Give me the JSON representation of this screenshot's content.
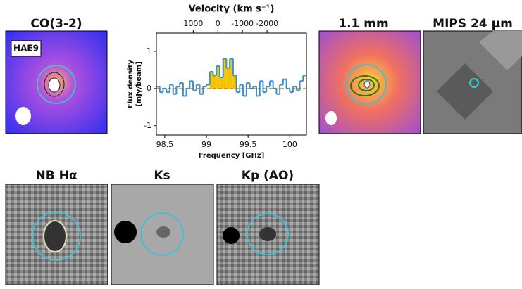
{
  "chart_data": {
    "type": "step",
    "title": "Velocity (km s⁻¹)",
    "x_label": "Frequency [GHz]",
    "y_label": [
      "Flux density",
      "[mJy/beam]"
    ],
    "x": [
      98.42,
      98.46,
      98.5,
      98.54,
      98.58,
      98.62,
      98.66,
      98.7,
      98.74,
      98.78,
      98.82,
      98.86,
      98.9,
      98.94,
      98.98,
      99.02,
      99.06,
      99.1,
      99.14,
      99.18,
      99.22,
      99.26,
      99.3,
      99.34,
      99.38,
      99.42,
      99.46,
      99.5,
      99.54,
      99.58,
      99.62,
      99.66,
      99.7,
      99.74,
      99.78,
      99.82,
      99.86,
      99.9,
      99.94,
      99.98,
      100.02,
      100.06,
      100.1,
      100.14,
      100.18
    ],
    "values": [
      0.05,
      -0.1,
      0.0,
      -0.1,
      0.1,
      -0.15,
      0.05,
      0.15,
      -0.2,
      0.0,
      0.2,
      -0.05,
      0.1,
      -0.15,
      0.05,
      0.1,
      0.45,
      0.35,
      0.6,
      0.3,
      0.8,
      0.55,
      0.8,
      0.35,
      -0.1,
      0.1,
      -0.2,
      0.15,
      0.0,
      0.05,
      -0.2,
      0.2,
      -0.1,
      0.05,
      0.2,
      0.0,
      -0.15,
      0.1,
      0.25,
      0.0,
      -0.1,
      0.05,
      -0.05,
      0.2,
      0.35
    ],
    "color": "#3a8fd0",
    "fill_color": "#f5c400",
    "fill_range": [
      99.04,
      99.36
    ],
    "zero_line_color": "#f08a00",
    "xlim": [
      98.4,
      100.2
    ],
    "xticks": [
      98.5,
      99,
      99.5,
      100
    ],
    "x2lim": [
      2500,
      -3600
    ],
    "x2ticks": [
      1000,
      0,
      -1000,
      -2000
    ],
    "ylim": [
      -1.25,
      1.49
    ],
    "yticks": [
      -1,
      0,
      1
    ]
  },
  "panels": {
    "co": "CO(3-2)",
    "co_label": "HAE9",
    "mm": "1.1 mm",
    "mips": "MIPS 24 μm",
    "nb": "NB Hα",
    "ks": "Ks",
    "kp": "Kp (AO)"
  }
}
